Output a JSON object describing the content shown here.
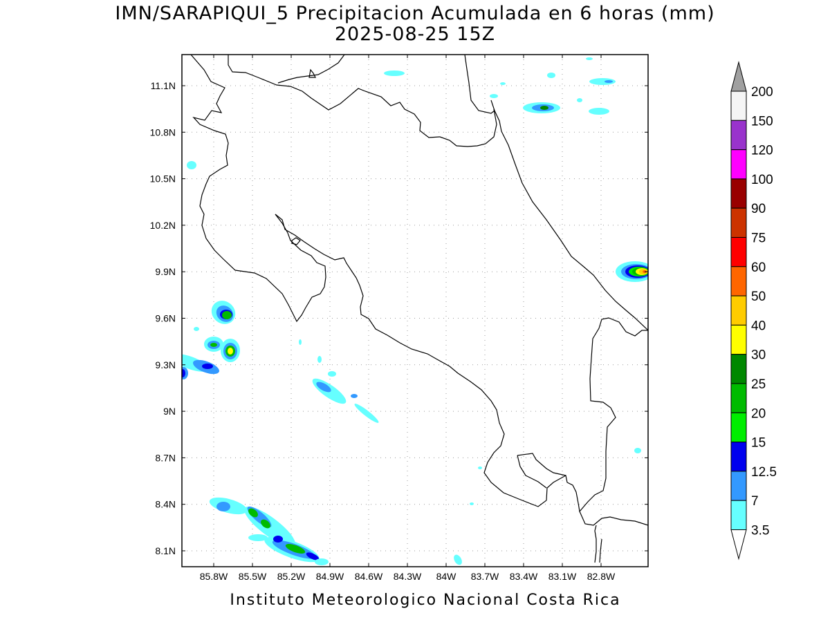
{
  "title_line1": "IMN/SARAPIQUI_5 Precipitacion Acumulada en 6 horas (mm)",
  "title_line2": "2025-08-25 15Z",
  "footer": "Instituto Meteorologico Nacional Costa Rica",
  "map": {
    "lon_labels": [
      "85.8W",
      "85.5W",
      "85.2W",
      "84.9W",
      "84.6W",
      "84.3W",
      "84W",
      "83.7W",
      "83.4W",
      "83.1W",
      "82.8W"
    ],
    "lat_labels": [
      "11.1N",
      "10.8N",
      "10.5N",
      "10.2N",
      "9.9N",
      "9.6N",
      "9.3N",
      "9N",
      "8.7N",
      "8.4N",
      "8.1N"
    ]
  },
  "colorbar": {
    "labels": [
      "200",
      "150",
      "120",
      "100",
      "90",
      "75",
      "60",
      "50",
      "40",
      "30",
      "25",
      "20",
      "15",
      "12.5",
      "7",
      "3.5"
    ],
    "colors": [
      "#a0a0a0",
      "#f5f5f5",
      "#9933cc",
      "#ff00ff",
      "#990000",
      "#cc3300",
      "#ff0000",
      "#ff6600",
      "#ffcc00",
      "#ffff00",
      "#008800",
      "#00bb00",
      "#00ee00",
      "#0000ee",
      "#3399ff",
      "#66ffff",
      "#ffffff"
    ]
  }
}
